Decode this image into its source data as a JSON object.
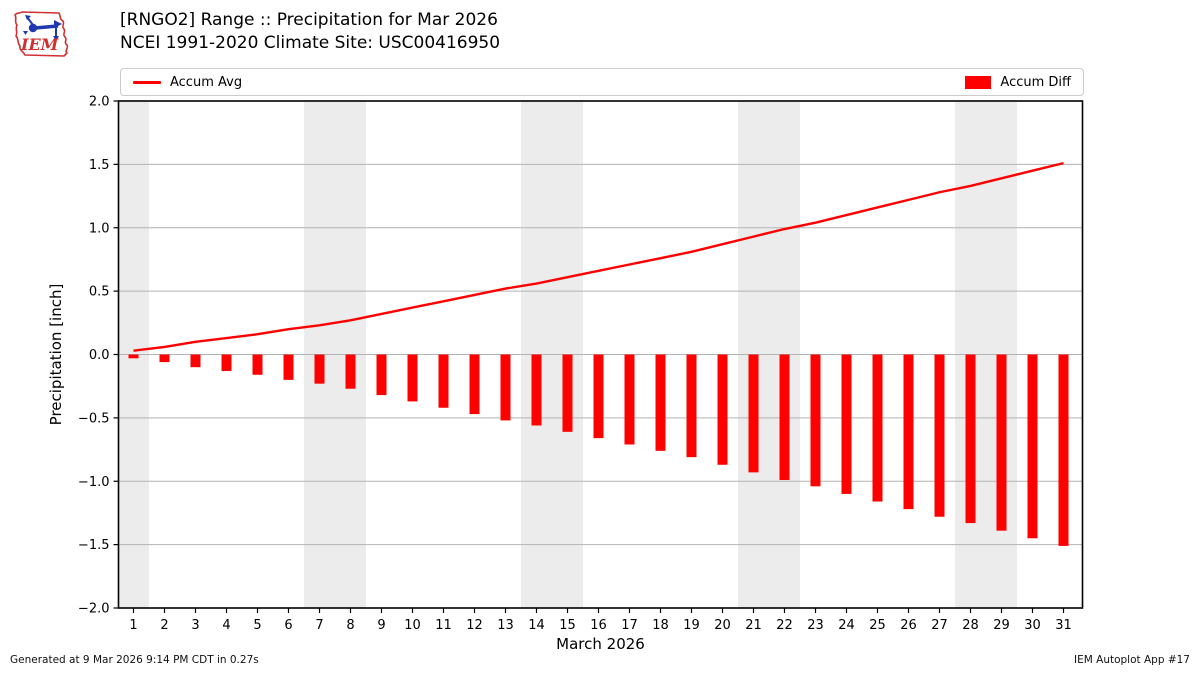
{
  "header": {
    "title_line1": "[RNGO2] Range :: Precipitation for Mar 2026",
    "title_line2": "NCEI 1991-2020 Climate Site: USC00416950",
    "logo_text": "IEM"
  },
  "legend": {
    "avg_label": "Accum Avg",
    "diff_label": "Accum Diff"
  },
  "footer": {
    "generated": "Generated at 9 Mar 2026 9:14 PM CDT in 0.27s",
    "app": "IEM Autoplot App #17"
  },
  "colors": {
    "accent_red": "#ff0000",
    "weekend_band": "#ececec",
    "grid": "#b3b3b3",
    "axis": "#000000",
    "logo_red": "#d03030",
    "logo_blue": "#2038b0"
  },
  "chart_data": {
    "type": "bar",
    "title": "[RNGO2] Range :: Precipitation for Mar 2026",
    "subtitle": "NCEI 1991-2020 Climate Site: USC00416950",
    "xlabel": "March 2026",
    "ylabel": "Precipitation [inch]",
    "ylim": [
      -2.0,
      2.0
    ],
    "y_ticks": [
      -2.0,
      -1.5,
      -1.0,
      -0.5,
      0.0,
      0.5,
      1.0,
      1.5,
      2.0
    ],
    "grid": true,
    "legend_position": "top",
    "x": [
      1,
      2,
      3,
      4,
      5,
      6,
      7,
      8,
      9,
      10,
      11,
      12,
      13,
      14,
      15,
      16,
      17,
      18,
      19,
      20,
      21,
      22,
      23,
      24,
      25,
      26,
      27,
      28,
      29,
      30,
      31
    ],
    "weekend_bands": [
      [
        1,
        1
      ],
      [
        7,
        8
      ],
      [
        14,
        15
      ],
      [
        21,
        22
      ],
      [
        28,
        29
      ]
    ],
    "series": [
      {
        "name": "Accum Avg",
        "type": "line",
        "color": "#ff0000",
        "values": [
          0.03,
          0.06,
          0.1,
          0.13,
          0.16,
          0.2,
          0.23,
          0.27,
          0.32,
          0.37,
          0.42,
          0.47,
          0.52,
          0.56,
          0.61,
          0.66,
          0.71,
          0.76,
          0.81,
          0.87,
          0.93,
          0.99,
          1.04,
          1.1,
          1.16,
          1.22,
          1.28,
          1.33,
          1.39,
          1.45,
          1.51
        ]
      },
      {
        "name": "Accum Diff",
        "type": "bar",
        "color": "#ff0000",
        "values": [
          -0.03,
          -0.06,
          -0.1,
          -0.13,
          -0.16,
          -0.2,
          -0.23,
          -0.27,
          -0.32,
          -0.37,
          -0.42,
          -0.47,
          -0.52,
          -0.56,
          -0.61,
          -0.66,
          -0.71,
          -0.76,
          -0.81,
          -0.87,
          -0.93,
          -0.99,
          -1.04,
          -1.1,
          -1.16,
          -1.22,
          -1.28,
          -1.33,
          -1.39,
          -1.45,
          -1.51
        ]
      }
    ]
  }
}
